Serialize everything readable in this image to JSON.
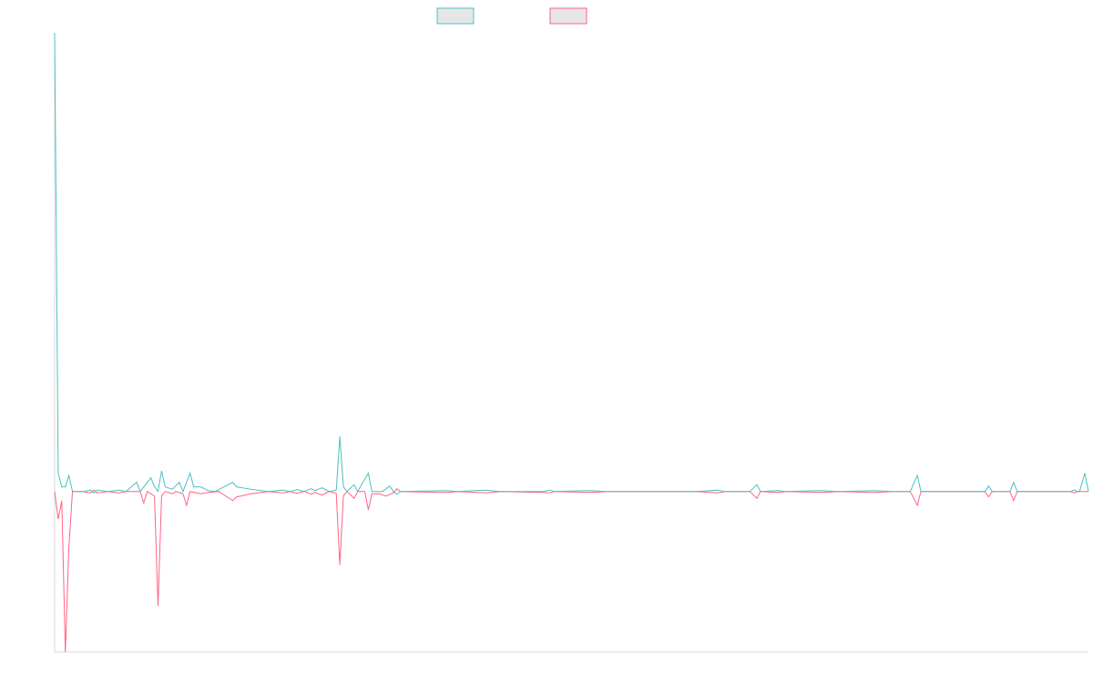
{
  "chart_data": {
    "type": "line",
    "title": "",
    "xlabel": "",
    "ylabel": "",
    "legend_position": "top",
    "grid": false,
    "series": [
      {
        "name": "",
        "color": "#4bc0c0",
        "fill": "#e6e6e6",
        "points": [
          [
            0,
            1.0
          ],
          [
            1,
            0.04
          ],
          [
            2,
            0.01
          ],
          [
            3,
            0.01
          ],
          [
            4,
            0.035
          ],
          [
            5,
            0
          ],
          [
            8,
            0
          ],
          [
            10,
            0.003
          ],
          [
            11,
            -0.003
          ],
          [
            12,
            0.003
          ],
          [
            15,
            0
          ],
          [
            18,
            0.003
          ],
          [
            20,
            0
          ],
          [
            23,
            0.02
          ],
          [
            24,
            0
          ],
          [
            27,
            0.03
          ],
          [
            28,
            0.01
          ],
          [
            29,
            0
          ],
          [
            30,
            0.045
          ],
          [
            31,
            0.01
          ],
          [
            33,
            0.005
          ],
          [
            35,
            0.02
          ],
          [
            36,
            0
          ],
          [
            38,
            0.04
          ],
          [
            39,
            0.01
          ],
          [
            41,
            0.01
          ],
          [
            43,
            0.002
          ],
          [
            45,
            0
          ],
          [
            50,
            0.02
          ],
          [
            51,
            0.01
          ],
          [
            55,
            0.005
          ],
          [
            60,
            0
          ],
          [
            64,
            0.003
          ],
          [
            66,
            0
          ],
          [
            68,
            0.004
          ],
          [
            70,
            0
          ],
          [
            72,
            0.006
          ],
          [
            73,
            0.002
          ],
          [
            75,
            0.008
          ],
          [
            77,
            0
          ],
          [
            79,
            0.003
          ],
          [
            80,
            0.12
          ],
          [
            81,
            0.01
          ],
          [
            82,
            0
          ],
          [
            84,
            0.015
          ],
          [
            85,
            0
          ],
          [
            88,
            0.04
          ],
          [
            89,
            0
          ],
          [
            92,
            0
          ],
          [
            94,
            0.012
          ],
          [
            95,
            0
          ],
          [
            96,
            -0.006
          ],
          [
            97,
            0
          ],
          [
            110,
            0.002
          ],
          [
            113,
            0
          ],
          [
            121,
            0.003
          ],
          [
            125,
            0
          ],
          [
            137,
            0
          ],
          [
            139,
            0.003
          ],
          [
            140,
            0
          ],
          [
            150,
            0.002
          ],
          [
            155,
            0
          ],
          [
            165,
            0
          ],
          [
            180,
            0
          ],
          [
            186,
            0.003
          ],
          [
            188,
            0
          ],
          [
            195,
            0
          ],
          [
            197,
            0.015
          ],
          [
            198,
            0
          ],
          [
            203,
            0.002
          ],
          [
            205,
            0
          ],
          [
            215,
            0.002
          ],
          [
            220,
            0
          ],
          [
            230,
            0.002
          ],
          [
            235,
            0
          ],
          [
            240,
            0
          ],
          [
            242,
            0.035
          ],
          [
            243,
            0
          ],
          [
            261,
            0
          ],
          [
            262,
            0.012
          ],
          [
            263,
            0
          ],
          [
            268,
            0
          ],
          [
            269,
            0.02
          ],
          [
            270,
            0
          ],
          [
            285,
            0
          ],
          [
            286,
            0.003
          ],
          [
            287,
            0
          ],
          [
            287.5,
            0
          ],
          [
            289,
            0.04
          ],
          [
            290,
            0
          ]
        ]
      },
      {
        "name": "",
        "color": "#ff6384",
        "fill": "#e6e6e6",
        "points": [
          [
            0,
            0
          ],
          [
            1,
            -0.06
          ],
          [
            2,
            -0.02
          ],
          [
            3,
            -0.35
          ],
          [
            4,
            -0.12
          ],
          [
            5,
            0
          ],
          [
            8,
            0
          ],
          [
            10,
            -0.003
          ],
          [
            11,
            0.003
          ],
          [
            12,
            -0.003
          ],
          [
            15,
            0
          ],
          [
            18,
            -0.003
          ],
          [
            20,
            0
          ],
          [
            24,
            0
          ],
          [
            25,
            -0.025
          ],
          [
            26,
            0
          ],
          [
            28,
            -0.01
          ],
          [
            29,
            -0.25
          ],
          [
            30,
            -0.01
          ],
          [
            31,
            0
          ],
          [
            33,
            -0.005
          ],
          [
            34,
            0
          ],
          [
            36,
            -0.005
          ],
          [
            37,
            -0.03
          ],
          [
            38,
            0
          ],
          [
            41,
            -0.005
          ],
          [
            43,
            -0.002
          ],
          [
            46,
            0
          ],
          [
            50,
            -0.02
          ],
          [
            51,
            -0.012
          ],
          [
            55,
            -0.005
          ],
          [
            60,
            0
          ],
          [
            64,
            -0.003
          ],
          [
            66,
            0
          ],
          [
            68,
            -0.004
          ],
          [
            70,
            0
          ],
          [
            72,
            -0.006
          ],
          [
            73,
            -0.002
          ],
          [
            75,
            -0.008
          ],
          [
            77,
            0
          ],
          [
            79,
            -0.004
          ],
          [
            80,
            -0.16
          ],
          [
            81,
            -0.01
          ],
          [
            82,
            0
          ],
          [
            84,
            -0.015
          ],
          [
            85,
            0
          ],
          [
            87,
            0
          ],
          [
            88,
            -0.04
          ],
          [
            89,
            -0.005
          ],
          [
            91,
            -0.005
          ],
          [
            93,
            -0.01
          ],
          [
            95,
            -0.003
          ],
          [
            96,
            0.006
          ],
          [
            97,
            0
          ],
          [
            110,
            -0.002
          ],
          [
            113,
            0
          ],
          [
            121,
            -0.003
          ],
          [
            125,
            0
          ],
          [
            137,
            -0.002
          ],
          [
            139,
            -0.003
          ],
          [
            140,
            0
          ],
          [
            150,
            -0.002
          ],
          [
            155,
            0
          ],
          [
            165,
            0
          ],
          [
            180,
            0
          ],
          [
            186,
            -0.003
          ],
          [
            188,
            0
          ],
          [
            195,
            0
          ],
          [
            197,
            -0.015
          ],
          [
            198,
            0
          ],
          [
            203,
            -0.002
          ],
          [
            205,
            0
          ],
          [
            215,
            -0.002
          ],
          [
            220,
            0
          ],
          [
            230,
            -0.002
          ],
          [
            235,
            0
          ],
          [
            240,
            0
          ],
          [
            242,
            -0.03
          ],
          [
            243,
            0
          ],
          [
            261,
            0
          ],
          [
            262,
            -0.012
          ],
          [
            263,
            0
          ],
          [
            268,
            0
          ],
          [
            269,
            -0.02
          ],
          [
            270,
            0
          ],
          [
            285,
            0
          ],
          [
            286,
            -0.003
          ],
          [
            287,
            0
          ],
          [
            290,
            0
          ]
        ]
      }
    ],
    "xlim": [
      0,
      290
    ],
    "ylim": [
      -0.35,
      1.0
    ],
    "xticks": [],
    "yticks": []
  }
}
